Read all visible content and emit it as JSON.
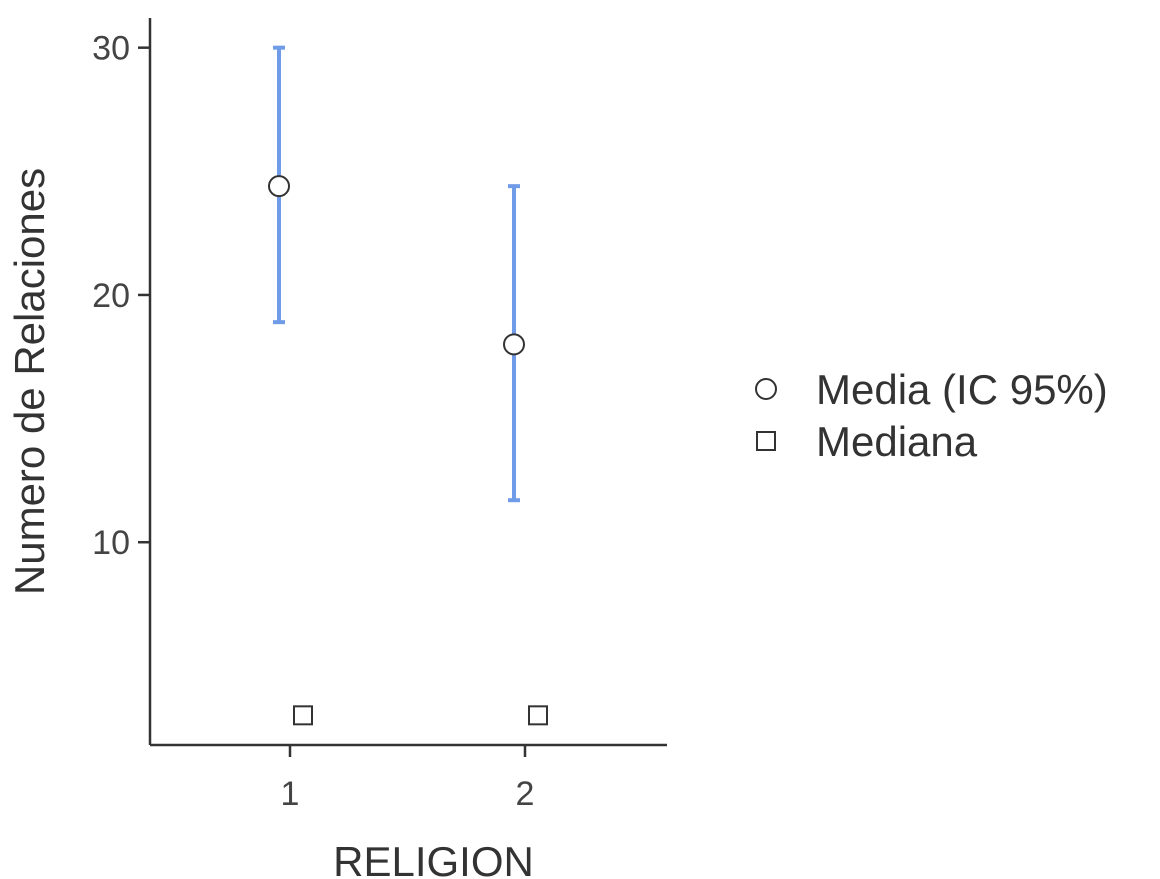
{
  "chart_data": {
    "type": "scatter",
    "xlabel": "RELIGION",
    "ylabel": "Numero de Relaciones",
    "categories": [
      "1",
      "2"
    ],
    "ylim": [
      1.8,
      31.2
    ],
    "yticks": [
      10,
      20,
      30
    ],
    "grid": false,
    "legend_position": "right",
    "series": [
      {
        "name": "Media (IC 95%)",
        "marker": "circle",
        "values": [
          24.4,
          18.0
        ],
        "ci_lower": [
          18.9,
          11.7
        ],
        "ci_upper": [
          30.0,
          24.4
        ]
      },
      {
        "name": "Mediana",
        "marker": "square",
        "values": [
          3.0,
          3.0
        ]
      }
    ],
    "colors": {
      "error_bar": "#6f9be8",
      "marker_fill": "#ffffff",
      "marker_stroke": "#333333",
      "axis": "#333333"
    }
  }
}
